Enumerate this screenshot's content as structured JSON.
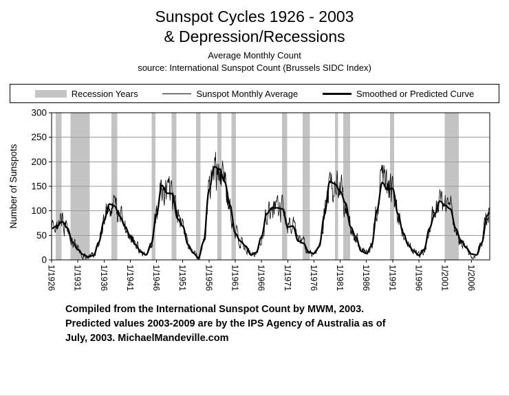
{
  "title": {
    "line1": "Sunspot Cycles 1926 - 2003",
    "line2": "& Depression/Recessions"
  },
  "subtitle": "Average Monthly Count",
  "source": "source:  International Sunspot Count (Brussels SIDC Index)",
  "legend": {
    "recession": "Recession Years",
    "monthly": "Sunspot Monthly Average",
    "smoothed": "Smoothed or Predicted Curve"
  },
  "footer": {
    "lines": [
      "Compiled from the International Sunspot Count by MWM, 2003.",
      "Predicted values 2003-2009 are by the IPS Agency of Australia as of",
      "July, 2003.  MichaelMandeville.com"
    ]
  },
  "chart_data": {
    "type": "line",
    "title": "Sunspot Cycles 1926 - 2003 & Depression/Recessions",
    "subtitle": "Average Monthly Count",
    "ylabel": "Number of Sunspots",
    "xlabel": "",
    "ylim": [
      0,
      300
    ],
    "ytick_interval": 50,
    "xlim": [
      1926,
      2009.5
    ],
    "xticks": [
      1926,
      1931,
      1936,
      1941,
      1946,
      1951,
      1956,
      1961,
      1966,
      1971,
      1976,
      1981,
      1986,
      1991,
      1996,
      2001,
      2006
    ],
    "xtick_labels": [
      "1/1926",
      "1/1931",
      "1/1936",
      "1/1941",
      "1/1946",
      "1/1951",
      "1/1956",
      "1/1961",
      "1/1966",
      "1/1971",
      "1/1976",
      "1/1981",
      "1/1986",
      "1/1991",
      "1/1996",
      "1/2001",
      "1/2006"
    ],
    "grid": "horizontal",
    "legend_position": "top",
    "colors": {
      "band": "#c4c4c4",
      "line": "#000000",
      "grid": "#9a9a9a",
      "background": "#ffffff"
    },
    "recession_bands": [
      [
        1926.8,
        1927.9
      ],
      [
        1929.6,
        1933.25
      ],
      [
        1937.4,
        1938.5
      ],
      [
        1945.1,
        1945.8
      ],
      [
        1948.9,
        1949.8
      ],
      [
        1953.5,
        1954.4
      ],
      [
        1957.6,
        1958.35
      ],
      [
        1960.3,
        1961.15
      ],
      [
        1969.9,
        1970.9
      ],
      [
        1973.85,
        1975.25
      ],
      [
        1980.0,
        1980.6
      ],
      [
        1981.55,
        1982.9
      ],
      [
        1990.5,
        1991.25
      ],
      [
        2000.9,
        2003.6
      ]
    ],
    "series": [
      {
        "name": "Sunspot Monthly Average",
        "role": "monthly",
        "style": "thin",
        "derived": "smoothed_plus_noise"
      },
      {
        "name": "Smoothed or Predicted Curve",
        "role": "smoothed",
        "style": "thick",
        "x_start": 1926,
        "x_step": 1,
        "values": [
          64,
          69,
          78,
          65,
          36,
          21,
          11,
          6,
          9,
          36,
          80,
          114,
          110,
          89,
          68,
          48,
          31,
          16,
          10,
          33,
          93,
          152,
          136,
          135,
          84,
          69,
          31,
          14,
          4,
          38,
          142,
          190,
          185,
          159,
          112,
          54,
          38,
          28,
          10,
          15,
          47,
          94,
          106,
          106,
          104,
          67,
          69,
          38,
          34,
          16,
          13,
          27,
          92,
          160,
          155,
          140,
          116,
          67,
          46,
          18,
          13,
          29,
          100,
          158,
          143,
          146,
          94,
          55,
          30,
          18,
          9,
          21,
          64,
          93,
          120,
          111,
          104,
          64,
          40,
          25,
          12,
          10,
          35,
          90,
          120
        ]
      }
    ],
    "noise": {
      "seed": 1926,
      "base": 5,
      "scale": 0.22,
      "ar": 0.5,
      "gain": 0.8
    }
  }
}
